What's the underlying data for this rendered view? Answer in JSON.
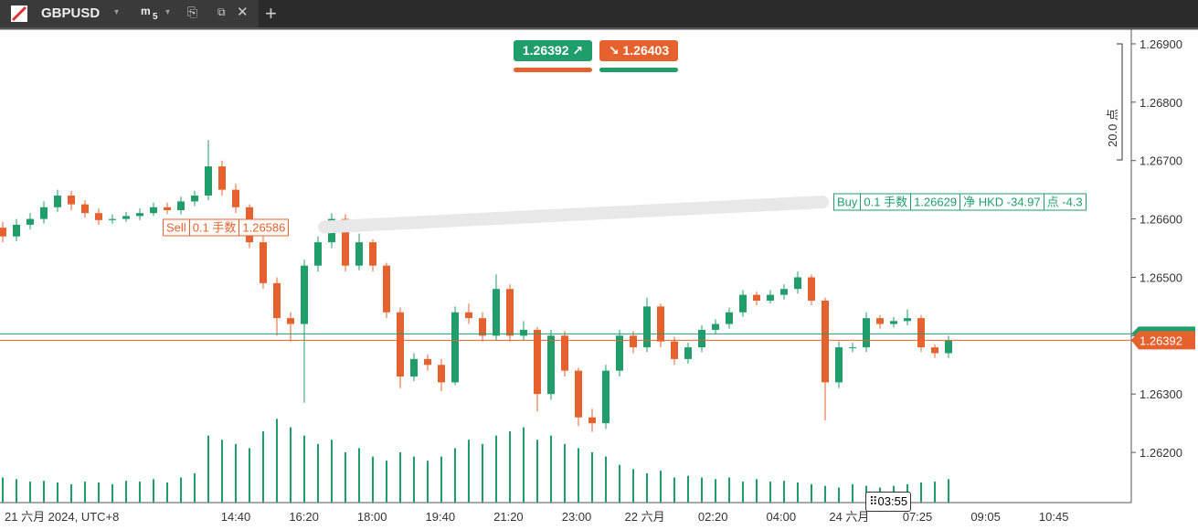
{
  "tab": {
    "symbol": "GBPUSD",
    "timeframe_letter": "m",
    "timeframe_number": "5"
  },
  "trade_buttons": {
    "sell_price": 1.26392,
    "buy_price": 1.26403
  },
  "ruler_label": "20.0 点",
  "timer": "03:55",
  "positions": [
    {
      "side": "Sell",
      "size": "0.1 手数",
      "price": 1.26586
    },
    {
      "side": "Buy",
      "size": "0.1 手数",
      "price": 1.26629,
      "pnl": "净 HKD -34.97",
      "points": "点 -4.3"
    }
  ],
  "chart_data": {
    "type": "candlestick",
    "up_color": "#1f9d6b",
    "down_color": "#e5622e",
    "bid": 1.26392,
    "ask": 1.26403,
    "bid_color": "#e5622e",
    "ask_color": "#1f9d6b",
    "ylim": [
      1.26114,
      1.26925
    ],
    "yticks": [
      {
        "value": 1.262,
        "label": "1.26200"
      },
      {
        "value": 1.263,
        "label": "1.26300"
      },
      {
        "value": 1.264,
        "label": "1.26400"
      },
      {
        "value": 1.265,
        "label": "1.26500"
      },
      {
        "value": 1.266,
        "label": "1.26600"
      },
      {
        "value": 1.267,
        "label": "1.26700"
      },
      {
        "value": 1.268,
        "label": "1.26800"
      },
      {
        "value": 1.269,
        "label": "1.26900"
      }
    ],
    "x_labels": [
      "21 六月 2024, UTC+8",
      "14:40",
      "16:20",
      "18:00",
      "19:40",
      "21:20",
      "23:00",
      "22 六月",
      "02:20",
      "04:00",
      "24 六月",
      "07:25",
      "09:05",
      "10:45"
    ],
    "open": [
      1.26585,
      1.2657,
      1.2659,
      1.266,
      1.2662,
      1.2664,
      1.26625,
      1.2661,
      1.26598,
      1.266,
      1.26605,
      1.2661,
      1.2662,
      1.26615,
      1.2663,
      1.2664,
      1.2669,
      1.2665,
      1.2662,
      1.2656,
      1.2649,
      1.2643,
      1.2642,
      1.2652,
      1.2656,
      1.266,
      1.2652,
      1.2656,
      1.2652,
      1.2644,
      1.2633,
      1.2636,
      1.2635,
      1.2632,
      1.2644,
      1.2643,
      1.264,
      1.2648,
      1.264,
      1.2641,
      1.263,
      1.264,
      1.2634,
      1.2626,
      1.2625,
      1.2634,
      1.264,
      1.2638,
      1.2645,
      1.2639,
      1.2636,
      1.2638,
      1.2641,
      1.2642,
      1.2644,
      1.2647,
      1.2646,
      1.2647,
      1.2648,
      1.265,
      1.2646,
      1.2632,
      1.2638,
      1.2638,
      1.2643,
      1.2642,
      1.26425,
      1.2643,
      1.2638,
      1.2637
    ],
    "high": [
      1.26595,
      1.266,
      1.2661,
      1.2663,
      1.2665,
      1.26648,
      1.26632,
      1.26618,
      1.26608,
      1.26612,
      1.26618,
      1.26628,
      1.26628,
      1.26638,
      1.26648,
      1.26735,
      1.267,
      1.2666,
      1.26625,
      1.2657,
      1.265,
      1.2644,
      1.2653,
      1.2657,
      1.2661,
      1.26608,
      1.26575,
      1.26565,
      1.26525,
      1.26448,
      1.2637,
      1.26368,
      1.2636,
      1.2645,
      1.26455,
      1.2644,
      1.26505,
      1.26488,
      1.26425,
      1.26415,
      1.2641,
      1.26408,
      1.26345,
      1.26275,
      1.2635,
      1.2641,
      1.26408,
      1.26465,
      1.26455,
      1.26398,
      1.26388,
      1.26418,
      1.26428,
      1.26448,
      1.26478,
      1.26475,
      1.26478,
      1.26488,
      1.2651,
      1.26505,
      1.26465,
      1.2639,
      1.26388,
      1.2644,
      1.26435,
      1.26432,
      1.26445,
      1.26435,
      1.26385,
      1.264
    ],
    "low": [
      1.2656,
      1.26562,
      1.26582,
      1.26592,
      1.26612,
      1.26615,
      1.26602,
      1.2659,
      1.26592,
      1.26595,
      1.26598,
      1.26605,
      1.26608,
      1.26608,
      1.26622,
      1.26632,
      1.2664,
      1.2661,
      1.2655,
      1.2648,
      1.264,
      1.2639,
      1.26285,
      1.2651,
      1.2655,
      1.2651,
      1.26512,
      1.2651,
      1.2643,
      1.2631,
      1.26322,
      1.2634,
      1.26305,
      1.26315,
      1.2642,
      1.2639,
      1.26392,
      1.2639,
      1.26392,
      1.2627,
      1.2629,
      1.2633,
      1.26245,
      1.26235,
      1.2624,
      1.2633,
      1.2637,
      1.26372,
      1.2638,
      1.2635,
      1.26352,
      1.26372,
      1.26402,
      1.26412,
      1.26432,
      1.26452,
      1.26455,
      1.26462,
      1.26472,
      1.26452,
      1.26255,
      1.2631,
      1.26372,
      1.26372,
      1.26412,
      1.26414,
      1.26418,
      1.26372,
      1.26362,
      1.26362
    ],
    "close": [
      1.2657,
      1.2659,
      1.266,
      1.2662,
      1.2664,
      1.26625,
      1.2661,
      1.26598,
      1.266,
      1.26605,
      1.2661,
      1.2662,
      1.26615,
      1.2663,
      1.2664,
      1.2669,
      1.2665,
      1.2662,
      1.2656,
      1.2649,
      1.2643,
      1.2642,
      1.2652,
      1.2656,
      1.266,
      1.2652,
      1.2656,
      1.2652,
      1.2644,
      1.2633,
      1.2636,
      1.2635,
      1.2632,
      1.2644,
      1.2643,
      1.264,
      1.2648,
      1.264,
      1.2641,
      1.263,
      1.264,
      1.2634,
      1.2626,
      1.2625,
      1.2634,
      1.264,
      1.2638,
      1.2645,
      1.2639,
      1.2636,
      1.2638,
      1.2641,
      1.2642,
      1.2644,
      1.2647,
      1.2646,
      1.2647,
      1.2648,
      1.265,
      1.2646,
      1.2632,
      1.2638,
      1.2638,
      1.2643,
      1.2642,
      1.26425,
      1.2643,
      1.2638,
      1.2637,
      1.26392
    ],
    "volume": [
      30,
      28,
      25,
      26,
      24,
      22,
      25,
      24,
      22,
      26,
      25,
      28,
      24,
      30,
      35,
      80,
      75,
      70,
      65,
      85,
      100,
      90,
      80,
      70,
      75,
      60,
      65,
      55,
      50,
      60,
      55,
      50,
      55,
      65,
      75,
      70,
      80,
      85,
      90,
      75,
      80,
      70,
      65,
      60,
      55,
      45,
      40,
      35,
      38,
      30,
      32,
      30,
      28,
      30,
      25,
      28,
      25,
      26,
      24,
      22,
      20,
      18,
      22,
      20,
      18,
      20,
      22,
      24,
      25,
      28
    ],
    "volume_lim": [
      0,
      120
    ]
  }
}
